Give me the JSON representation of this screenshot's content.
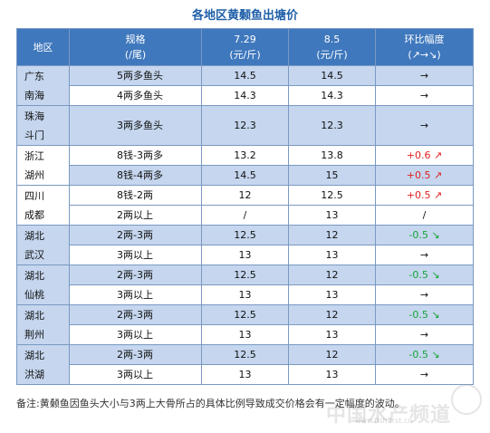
{
  "title": "各地区黄颡鱼出塘价",
  "header": {
    "region": "地区",
    "spec_line1": "规格",
    "spec_line2": "(/尾)",
    "d1_line1": "7.29",
    "d1_line2": "(元/斤)",
    "d2_line1": "8.5",
    "d2_line2": "(元/斤)",
    "change_line1": "环比幅度",
    "change_line2": "(↗→↘)"
  },
  "groups": [
    {
      "region": "广东\n南海",
      "rows": [
        {
          "spec": "5两多鱼头",
          "p1": "14.5",
          "p2": "14.5",
          "change": "→",
          "dir": "flat"
        },
        {
          "spec": "4两多鱼头",
          "p1": "14.3",
          "p2": "14.3",
          "change": "→",
          "dir": "flat"
        }
      ]
    },
    {
      "region": "珠海\n斗门",
      "rows": [
        {
          "spec": "3两多鱼头",
          "p1": "12.3",
          "p2": "12.3",
          "change": "→",
          "dir": "flat",
          "tall": true
        }
      ]
    },
    {
      "region": "浙江\n湖州",
      "rows": [
        {
          "spec": "8钱-3两多",
          "p1": "13.2",
          "p2": "13.8",
          "change": "+0.6 ↗",
          "dir": "up"
        },
        {
          "spec": "8钱-4两多",
          "p1": "14.5",
          "p2": "15",
          "change": "+0.5 ↗",
          "dir": "up"
        }
      ]
    },
    {
      "region": "四川\n成都",
      "rows": [
        {
          "spec": "8钱-2两",
          "p1": "12",
          "p2": "12.5",
          "change": "+0.5 ↗",
          "dir": "up"
        },
        {
          "spec": "2两以上",
          "p1": "/",
          "p2": "13",
          "change": "/",
          "dir": "flat"
        }
      ]
    },
    {
      "region": "湖北\n武汉",
      "rows": [
        {
          "spec": "2两-3两",
          "p1": "12.5",
          "p2": "12",
          "change": "-0.5 ↘",
          "dir": "down"
        },
        {
          "spec": "3两以上",
          "p1": "13",
          "p2": "13",
          "change": "→",
          "dir": "flat"
        }
      ]
    },
    {
      "region": "湖北\n仙桃",
      "rows": [
        {
          "spec": "2两-3两",
          "p1": "12.5",
          "p2": "12",
          "change": "-0.5 ↘",
          "dir": "down"
        },
        {
          "spec": "3两以上",
          "p1": "13",
          "p2": "13",
          "change": "→",
          "dir": "flat"
        }
      ]
    },
    {
      "region": "湖北\n荆州",
      "rows": [
        {
          "spec": "2两-3两",
          "p1": "12.5",
          "p2": "12",
          "change": "-0.5 ↘",
          "dir": "down"
        },
        {
          "spec": "3两以上",
          "p1": "13",
          "p2": "13",
          "change": "→",
          "dir": "flat"
        }
      ]
    },
    {
      "region": "湖北\n洪湖",
      "rows": [
        {
          "spec": "2两-3两",
          "p1": "12.5",
          "p2": "12",
          "change": "-0.5 ↘",
          "dir": "down"
        },
        {
          "spec": "3两以上",
          "p1": "13",
          "p2": "13",
          "change": "→",
          "dir": "flat"
        }
      ]
    }
  ],
  "note": "备注:黄颡鱼因鱼头大小与3两上大骨所占的具体比例导致成交价格会有一定幅度的波动。",
  "watermark": "中国水产频道",
  "watermark_url": "www.fishfirst.cn",
  "colors": {
    "header_bg": "#3f78bd",
    "band_blue": "#c5d6ee",
    "up": "#e02020",
    "down": "#16a53a",
    "title": "#1f5fa8"
  }
}
